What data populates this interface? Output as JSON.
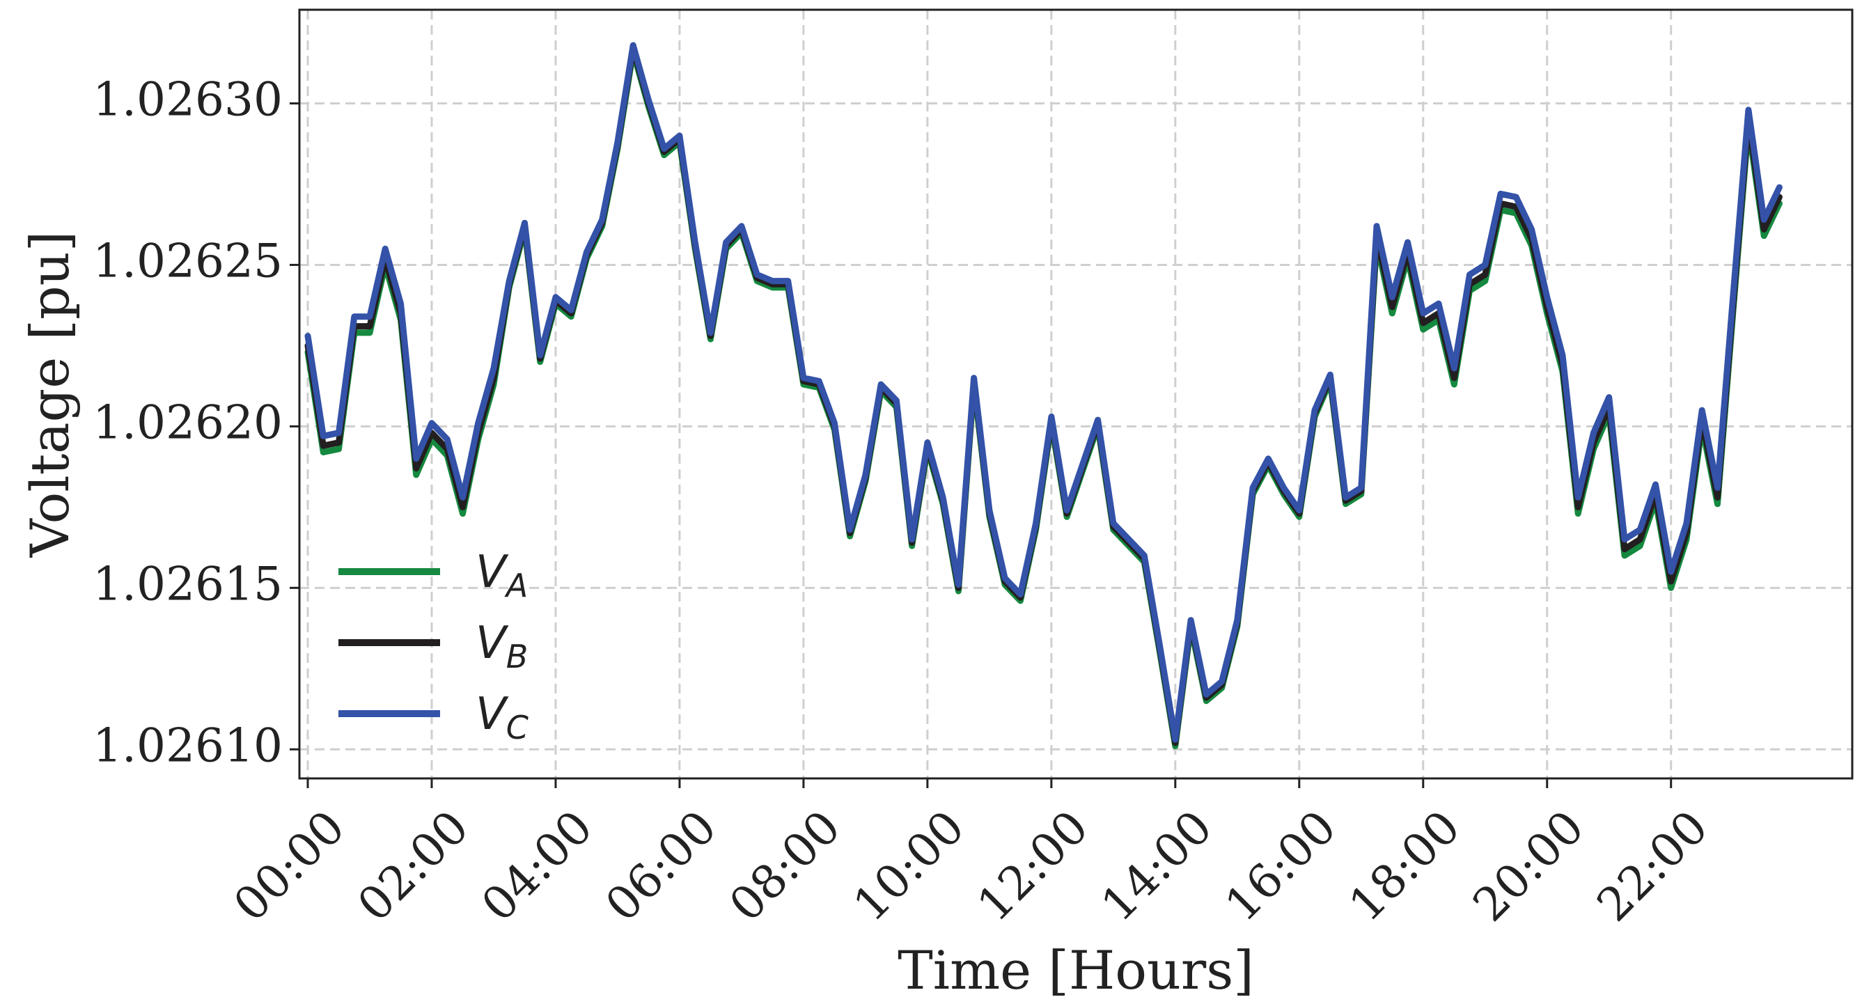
{
  "chart_data": {
    "type": "line",
    "xlabel": "Time [Hours]",
    "ylabel": "Voltage [pu]",
    "categories": [
      "00:00",
      null,
      null,
      null,
      null,
      null,
      null,
      null,
      "02:00",
      null,
      null,
      null,
      null,
      null,
      null,
      null,
      "04:00",
      null,
      null,
      null,
      null,
      null,
      null,
      null,
      "06:00",
      null,
      null,
      null,
      null,
      null,
      null,
      null,
      "08:00",
      null,
      null,
      null,
      null,
      null,
      null,
      null,
      "10:00",
      null,
      null,
      null,
      null,
      null,
      null,
      null,
      "12:00",
      null,
      null,
      null,
      null,
      null,
      null,
      null,
      "14:00",
      null,
      null,
      null,
      null,
      null,
      null,
      null,
      "16:00",
      null,
      null,
      null,
      null,
      null,
      null,
      null,
      "18:00",
      null,
      null,
      null,
      null,
      null,
      null,
      null,
      "20:00",
      null,
      null,
      null,
      null,
      null,
      null,
      null,
      "22:00",
      null,
      null,
      null,
      null,
      null,
      null,
      null
    ],
    "ylim": [
      1.026091,
      1.026329
    ],
    "yticks": [
      {
        "value": 1.0261,
        "label": "1.02610"
      },
      {
        "value": 1.02615,
        "label": "1.02615"
      },
      {
        "value": 1.0262,
        "label": "1.02620"
      },
      {
        "value": 1.02625,
        "label": "1.02625"
      },
      {
        "value": 1.0263,
        "label": "1.02630"
      }
    ],
    "grid": true,
    "legend": "lower left",
    "series": [
      {
        "name": "VA",
        "color": "#15893f",
        "values": [
          1.026223,
          1.026192,
          1.026193,
          1.026229,
          1.026229,
          1.02625,
          1.026233,
          1.026185,
          1.026196,
          1.026191,
          1.026173,
          1.026196,
          1.026213,
          1.026243,
          1.026261,
          1.02622,
          1.026238,
          1.026234,
          1.026252,
          1.026262,
          1.026286,
          1.026316,
          1.026299,
          1.026284,
          1.026288,
          1.026255,
          1.026227,
          1.026255,
          1.02626,
          1.026245,
          1.026243,
          1.026243,
          1.026213,
          1.026212,
          1.026199,
          1.026166,
          1.026183,
          1.026211,
          1.026206,
          1.026163,
          1.026193,
          1.026176,
          1.026149,
          1.026213,
          1.026172,
          1.026151,
          1.026146,
          1.026168,
          1.026201,
          1.026172,
          1.026186,
          1.0262,
          1.026168,
          1.026163,
          1.026158,
          1.02613,
          1.026101,
          1.026138,
          1.026115,
          1.026119,
          1.026138,
          1.026179,
          1.026188,
          1.026179,
          1.026172,
          1.026203,
          1.026214,
          1.026176,
          1.026179,
          1.026257,
          1.026235,
          1.026252,
          1.02623,
          1.026233,
          1.026213,
          1.026242,
          1.026245,
          1.026267,
          1.026266,
          1.026256,
          1.026235,
          1.026217,
          1.026173,
          1.026193,
          1.026204,
          1.02616,
          1.026163,
          1.026177,
          1.02615,
          1.026165,
          1.0262,
          1.026176,
          1.026235,
          1.026293,
          1.026259,
          1.026269
        ]
      },
      {
        "name": "VB",
        "color": "#231f20",
        "values": [
          1.026225,
          1.026194,
          1.026195,
          1.026231,
          1.026231,
          1.026252,
          1.026235,
          1.026187,
          1.026198,
          1.026193,
          1.026175,
          1.026198,
          1.026215,
          1.026244,
          1.026262,
          1.026221,
          1.026239,
          1.026235,
          1.026253,
          1.026263,
          1.026287,
          1.026317,
          1.0263,
          1.026285,
          1.026289,
          1.026256,
          1.026228,
          1.026256,
          1.026261,
          1.026246,
          1.026244,
          1.026244,
          1.026214,
          1.026213,
          1.0262,
          1.026167,
          1.026184,
          1.026212,
          1.026207,
          1.026164,
          1.026194,
          1.026177,
          1.02615,
          1.026214,
          1.026173,
          1.026152,
          1.026147,
          1.026169,
          1.026202,
          1.026173,
          1.026187,
          1.026201,
          1.026169,
          1.026164,
          1.026159,
          1.026131,
          1.026102,
          1.026139,
          1.026116,
          1.02612,
          1.026139,
          1.02618,
          1.026189,
          1.02618,
          1.026173,
          1.026204,
          1.026215,
          1.026177,
          1.02618,
          1.026259,
          1.026237,
          1.026254,
          1.026232,
          1.026235,
          1.026215,
          1.026244,
          1.026247,
          1.026269,
          1.026268,
          1.026258,
          1.026237,
          1.026219,
          1.026175,
          1.026195,
          1.026206,
          1.026162,
          1.026165,
          1.026179,
          1.026152,
          1.026167,
          1.026202,
          1.026178,
          1.026237,
          1.026295,
          1.026261,
          1.026271
        ]
      },
      {
        "name": "VC",
        "color": "#3352a8",
        "values": [
          1.026228,
          1.026197,
          1.026198,
          1.026234,
          1.026234,
          1.026255,
          1.026238,
          1.02619,
          1.026201,
          1.026196,
          1.026178,
          1.026201,
          1.026218,
          1.026245,
          1.026263,
          1.026222,
          1.02624,
          1.026236,
          1.026254,
          1.026264,
          1.026288,
          1.026318,
          1.026301,
          1.026286,
          1.02629,
          1.026257,
          1.026229,
          1.026257,
          1.026262,
          1.026247,
          1.026245,
          1.026245,
          1.026215,
          1.026214,
          1.026201,
          1.026168,
          1.026185,
          1.026213,
          1.026208,
          1.026165,
          1.026195,
          1.026178,
          1.026151,
          1.026215,
          1.026174,
          1.026153,
          1.026148,
          1.02617,
          1.026203,
          1.026174,
          1.026188,
          1.026202,
          1.02617,
          1.026165,
          1.02616,
          1.026132,
          1.026103,
          1.02614,
          1.026117,
          1.026121,
          1.02614,
          1.026181,
          1.02619,
          1.026181,
          1.026174,
          1.026205,
          1.026216,
          1.026178,
          1.026181,
          1.026262,
          1.02624,
          1.026257,
          1.026235,
          1.026238,
          1.026218,
          1.026247,
          1.02625,
          1.026272,
          1.026271,
          1.026261,
          1.02624,
          1.026222,
          1.026178,
          1.026198,
          1.026209,
          1.026165,
          1.026168,
          1.026182,
          1.026155,
          1.02617,
          1.026205,
          1.026181,
          1.02624,
          1.026298,
          1.026264,
          1.026274
        ]
      }
    ]
  }
}
